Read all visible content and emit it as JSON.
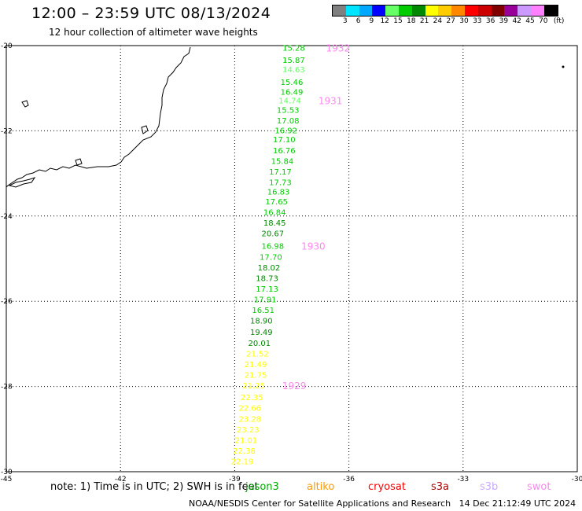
{
  "header": {
    "title": "12:00 – 23:59 UTC 08/13/2024",
    "subtitle": "12 hour collection of altimeter wave heights"
  },
  "legend": {
    "unit": "(ft)",
    "bins": [
      {
        "label": "3",
        "color": "#808080"
      },
      {
        "label": "6",
        "color": "#00e5ff"
      },
      {
        "label": "9",
        "color": "#00a8ff"
      },
      {
        "label": "12",
        "color": "#0000ff"
      },
      {
        "label": "15",
        "color": "#66ff66"
      },
      {
        "label": "18",
        "color": "#00cc00"
      },
      {
        "label": "21",
        "color": "#008800"
      },
      {
        "label": "24",
        "color": "#ffff00"
      },
      {
        "label": "27",
        "color": "#ffcc00"
      },
      {
        "label": "30",
        "color": "#ff8800"
      },
      {
        "label": "33",
        "color": "#ff0000"
      },
      {
        "label": "36",
        "color": "#cc0000"
      },
      {
        "label": "39",
        "color": "#800000"
      },
      {
        "label": "42",
        "color": "#990099"
      },
      {
        "label": "45",
        "color": "#cc99ff"
      },
      {
        "label": "70",
        "color": "#ff80ff"
      },
      {
        "label": "",
        "color": "#000000"
      }
    ]
  },
  "chart_data": {
    "type": "scatter",
    "title": "12:00 – 23:59 UTC 08/13/2024",
    "subtitle": "12 hour collection of altimeter wave heights",
    "xlim": [
      -45,
      -30
    ],
    "ylim": [
      -30,
      -20
    ],
    "x_ticks": [
      "-45",
      "-42",
      "-39",
      "-36",
      "-33",
      "-30"
    ],
    "y_ticks": [
      "-20",
      "-22",
      "-24",
      "-26",
      "-28",
      "-30"
    ],
    "grid": true,
    "series": [
      {
        "name": "jason3",
        "points": [
          {
            "lon": -37.45,
            "lat": -20.05,
            "swh": "15.28"
          },
          {
            "lon": -37.45,
            "lat": -20.33,
            "swh": "15.87"
          },
          {
            "lon": -37.45,
            "lat": -20.55,
            "swh": "14.63"
          },
          {
            "lon": -37.5,
            "lat": -20.85,
            "swh": "15.46"
          },
          {
            "lon": -37.5,
            "lat": -21.08,
            "swh": "16.49"
          },
          {
            "lon": -37.55,
            "lat": -21.28,
            "swh": "14.74"
          },
          {
            "lon": -37.6,
            "lat": -21.5,
            "swh": "15.53"
          },
          {
            "lon": -37.6,
            "lat": -21.75,
            "swh": "17.08"
          },
          {
            "lon": -37.65,
            "lat": -21.98,
            "swh": "16.92"
          },
          {
            "lon": -37.7,
            "lat": -22.2,
            "swh": "17.10"
          },
          {
            "lon": -37.7,
            "lat": -22.45,
            "swh": "16.76"
          },
          {
            "lon": -37.75,
            "lat": -22.7,
            "swh": "15.84"
          },
          {
            "lon": -37.8,
            "lat": -22.95,
            "swh": "17.17"
          },
          {
            "lon": -37.8,
            "lat": -23.2,
            "swh": "17.73"
          },
          {
            "lon": -37.85,
            "lat": -23.42,
            "swh": "16.83"
          },
          {
            "lon": -37.9,
            "lat": -23.65,
            "swh": "17.65"
          },
          {
            "lon": -37.95,
            "lat": -23.9,
            "swh": "16.84"
          },
          {
            "lon": -37.95,
            "lat": -24.15,
            "swh": "18.45"
          },
          {
            "lon": -38.0,
            "lat": -24.4,
            "swh": "20.67"
          },
          {
            "lon": -38.0,
            "lat": -24.7,
            "swh": "16.98"
          },
          {
            "lon": -38.05,
            "lat": -24.95,
            "swh": "17.70"
          },
          {
            "lon": -38.1,
            "lat": -25.2,
            "swh": "18.02"
          },
          {
            "lon": -38.15,
            "lat": -25.45,
            "swh": "18.73"
          },
          {
            "lon": -38.15,
            "lat": -25.7,
            "swh": "17.13"
          },
          {
            "lon": -38.2,
            "lat": -25.95,
            "swh": "17.91"
          },
          {
            "lon": -38.25,
            "lat": -26.2,
            "swh": "16.51"
          },
          {
            "lon": -38.3,
            "lat": -26.45,
            "swh": "18.90"
          },
          {
            "lon": -38.3,
            "lat": -26.72,
            "swh": "19.49"
          },
          {
            "lon": -38.35,
            "lat": -26.97,
            "swh": "20.01"
          },
          {
            "lon": -38.4,
            "lat": -27.22,
            "swh": "21.52"
          },
          {
            "lon": -38.45,
            "lat": -27.47,
            "swh": "21.49"
          },
          {
            "lon": -38.45,
            "lat": -27.72,
            "swh": "21.75"
          },
          {
            "lon": -38.5,
            "lat": -27.97,
            "swh": "21.25"
          },
          {
            "lon": -38.55,
            "lat": -28.25,
            "swh": "22.35"
          },
          {
            "lon": -38.6,
            "lat": -28.5,
            "swh": "22.66"
          },
          {
            "lon": -38.6,
            "lat": -28.75,
            "swh": "23.28"
          },
          {
            "lon": -38.65,
            "lat": -29.0,
            "swh": "23.23"
          },
          {
            "lon": -38.7,
            "lat": -29.25,
            "swh": "21.01"
          },
          {
            "lon": -38.75,
            "lat": -29.5,
            "swh": "22.38"
          },
          {
            "lon": -38.8,
            "lat": -29.75,
            "swh": "22.19"
          }
        ]
      }
    ],
    "time_labels": [
      {
        "lon": -36.6,
        "lat": -20.05,
        "text": "1932"
      },
      {
        "lon": -36.8,
        "lat": -21.28,
        "text": "1931"
      },
      {
        "lon": -37.25,
        "lat": -24.7,
        "text": "1930"
      },
      {
        "lon": -37.75,
        "lat": -27.97,
        "text": "1929"
      }
    ]
  },
  "footer": {
    "note": "note: 1) Time is in UTC; 2) SWH is in feet",
    "missions": [
      {
        "name": "jason3",
        "color": "#00aa00"
      },
      {
        "name": "altiko",
        "color": "#ff9900"
      },
      {
        "name": "cryosat",
        "color": "#ff0000"
      },
      {
        "name": "s3a",
        "color": "#aa0000"
      },
      {
        "name": "s3b",
        "color": "#ccaaff"
      },
      {
        "name": "swot",
        "color": "#ff88ee"
      }
    ],
    "credit": "NOAA/NESDIS Center for Satellite Applications and Research",
    "timestamp": "14 Dec 21:12:49 UTC 2024"
  }
}
